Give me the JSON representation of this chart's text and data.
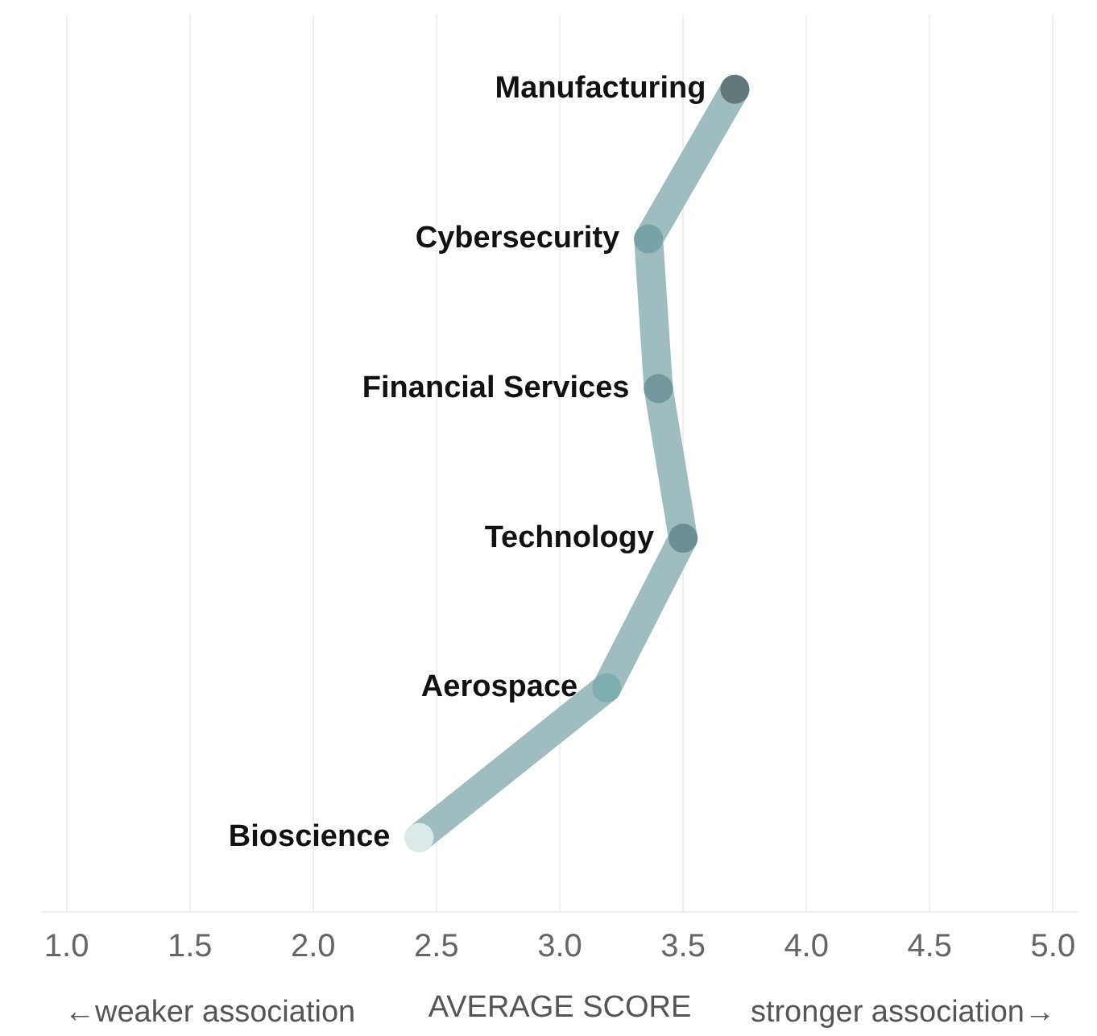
{
  "chart_data": {
    "type": "line",
    "orientation": "horizontal",
    "categories": [
      "Manufacturing",
      "Cybersecurity",
      "Financial Services",
      "Technology",
      "Aerospace",
      "Bioscience"
    ],
    "series": [
      {
        "color": "#9fbcbf",
        "colors": [
          "#62797c",
          "#77a3a8",
          "#73989c",
          "#6a8e92",
          "#7eadb2",
          "#dbe9ea"
        ],
        "values": [
          3.71,
          3.36,
          3.4,
          3.5,
          3.19,
          2.43
        ]
      }
    ],
    "xlabel": "AVERAGE SCORE",
    "xlim": [
      0.9,
      5.1
    ],
    "xticks": [
      {
        "value": 1,
        "label": "1.0"
      },
      {
        "value": 1.5,
        "label": "1.5"
      },
      {
        "value": 2,
        "label": "2.0"
      },
      {
        "value": 2.5,
        "label": "2.5"
      },
      {
        "value": 3,
        "label": "3.0"
      },
      {
        "value": 3.5,
        "label": "3.5"
      },
      {
        "value": 4,
        "label": "4.0"
      },
      {
        "value": 4.5,
        "label": "4.5"
      },
      {
        "value": 5,
        "label": "5.0"
      }
    ],
    "annotations": [
      "←weaker association",
      "stronger association→"
    ],
    "grid": "x",
    "tick_labels": "x",
    "marker": "circle",
    "line_style": "solid",
    "legend": false
  }
}
